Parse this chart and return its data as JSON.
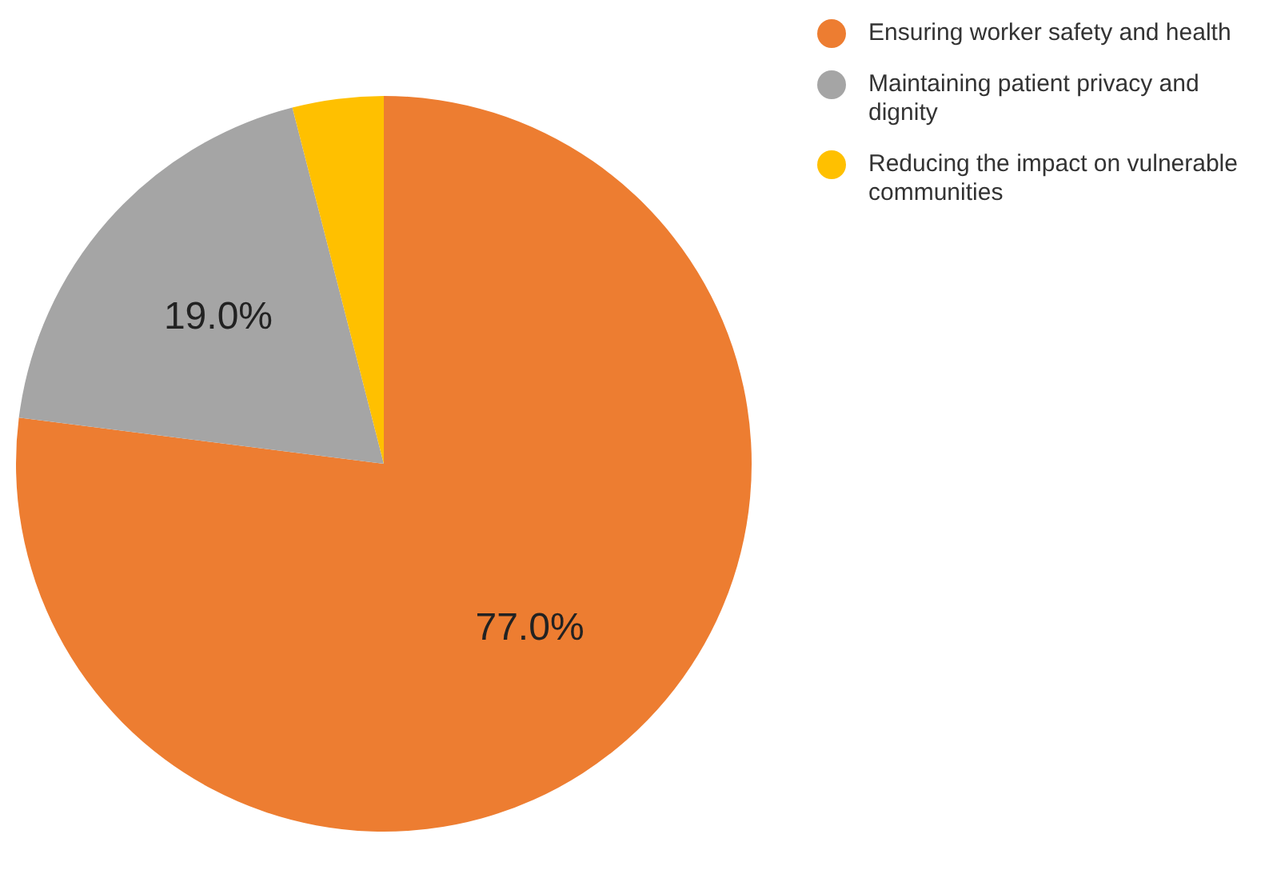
{
  "chart_data": {
    "type": "pie",
    "categories": [
      "Ensuring worker safety and health",
      "Maintaining patient privacy and dignity",
      "Reducing the impact on vulnerable communities"
    ],
    "values": [
      77,
      19,
      4
    ],
    "colors": [
      "#ed7d31",
      "#a5a5a5",
      "#ffc000"
    ],
    "value_labels": [
      "77.0%",
      "19.0%",
      null
    ],
    "legend": "top right"
  }
}
